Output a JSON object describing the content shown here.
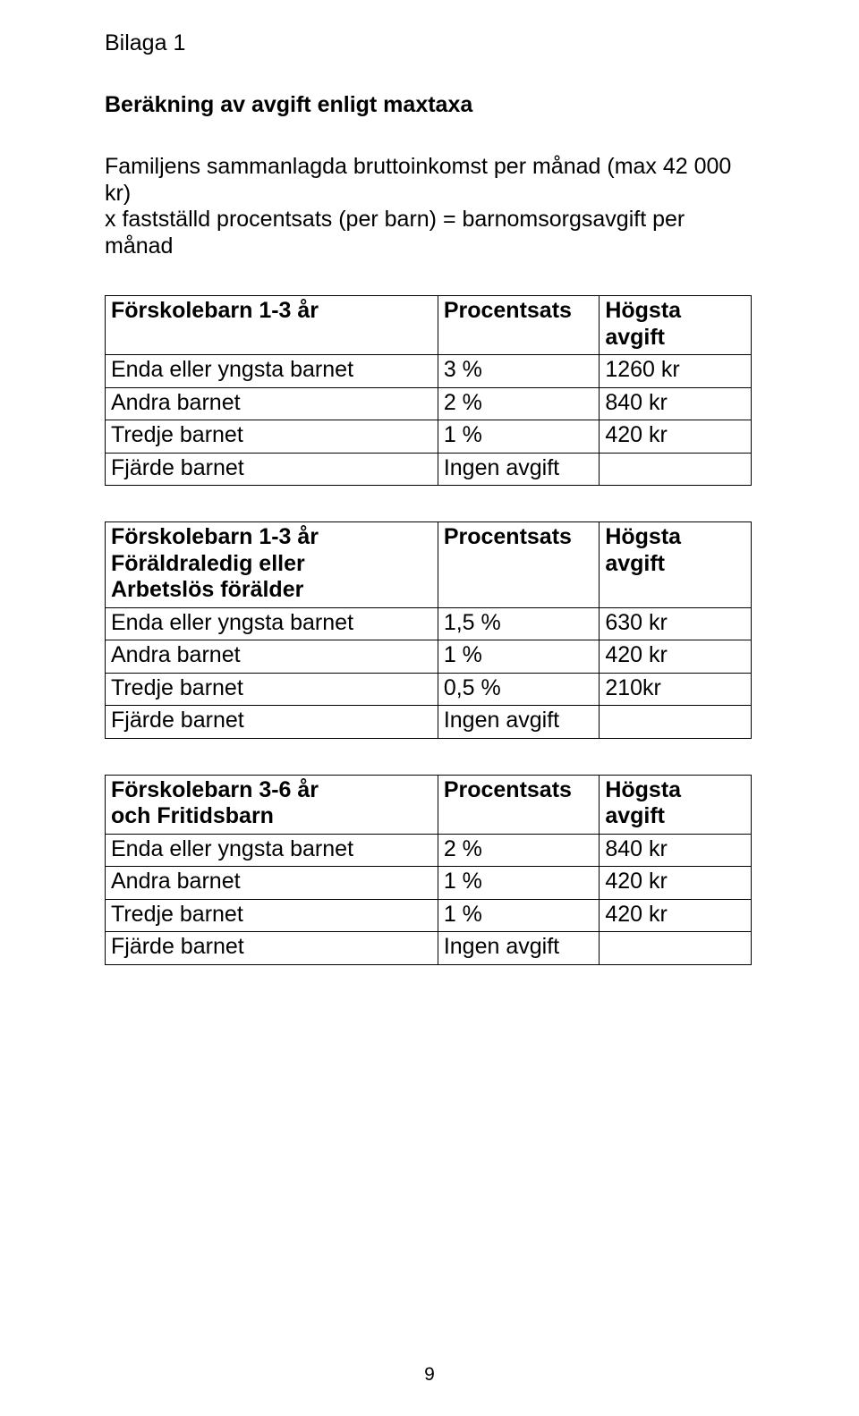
{
  "page": {
    "annex_label": "Bilaga 1",
    "heading": "Beräkning av avgift enligt maxtaxa",
    "intro_line1": "Familjens sammanlagda bruttoinkomst per månad (max 42 000 kr)",
    "intro_line2": "x fastställd procentsats (per barn) = barnomsorgsavgift per månad",
    "page_number": "9"
  },
  "tables": [
    {
      "header": {
        "c1": "Förskolebarn 1-3 år",
        "c2": "Procentsats",
        "c3": "Högsta avgift"
      },
      "rows": [
        {
          "c1": "Enda eller yngsta barnet",
          "c2": "3 %",
          "c3": "1260 kr"
        },
        {
          "c1": "Andra barnet",
          "c2": "2 %",
          "c3": "840 kr"
        },
        {
          "c1": "Tredje barnet",
          "c2": "1 %",
          "c3": "420 kr"
        },
        {
          "c1": "Fjärde barnet",
          "c2": "Ingen avgift",
          "c3": ""
        }
      ]
    },
    {
      "header": {
        "c1a": "Förskolebarn 1-3 år",
        "c1b": "Föräldraledig eller",
        "c1c": "Arbetslös förälder",
        "c2": "Procentsats",
        "c3": "Högsta avgift"
      },
      "rows": [
        {
          "c1": "Enda eller yngsta barnet",
          "c2": "1,5 %",
          "c3": "630 kr"
        },
        {
          "c1": "Andra barnet",
          "c2": "1 %",
          "c3": "420 kr"
        },
        {
          "c1": "Tredje barnet",
          "c2": "0,5 %",
          "c3": "210kr"
        },
        {
          "c1": "Fjärde barnet",
          "c2": "Ingen avgift",
          "c3": ""
        }
      ]
    },
    {
      "header": {
        "c1a": "Förskolebarn 3-6 år",
        "c1b": "och Fritidsbarn",
        "c2": "Procentsats",
        "c3": "Högsta avgift"
      },
      "rows": [
        {
          "c1": "Enda eller yngsta barnet",
          "c2": "2 %",
          "c3": "840 kr"
        },
        {
          "c1": "Andra barnet",
          "c2": "1 %",
          "c3": "420 kr"
        },
        {
          "c1": "Tredje barnet",
          "c2": "1 %",
          "c3": "420 kr"
        },
        {
          "c1": "Fjärde barnet",
          "c2": "Ingen avgift",
          "c3": ""
        }
      ]
    }
  ]
}
